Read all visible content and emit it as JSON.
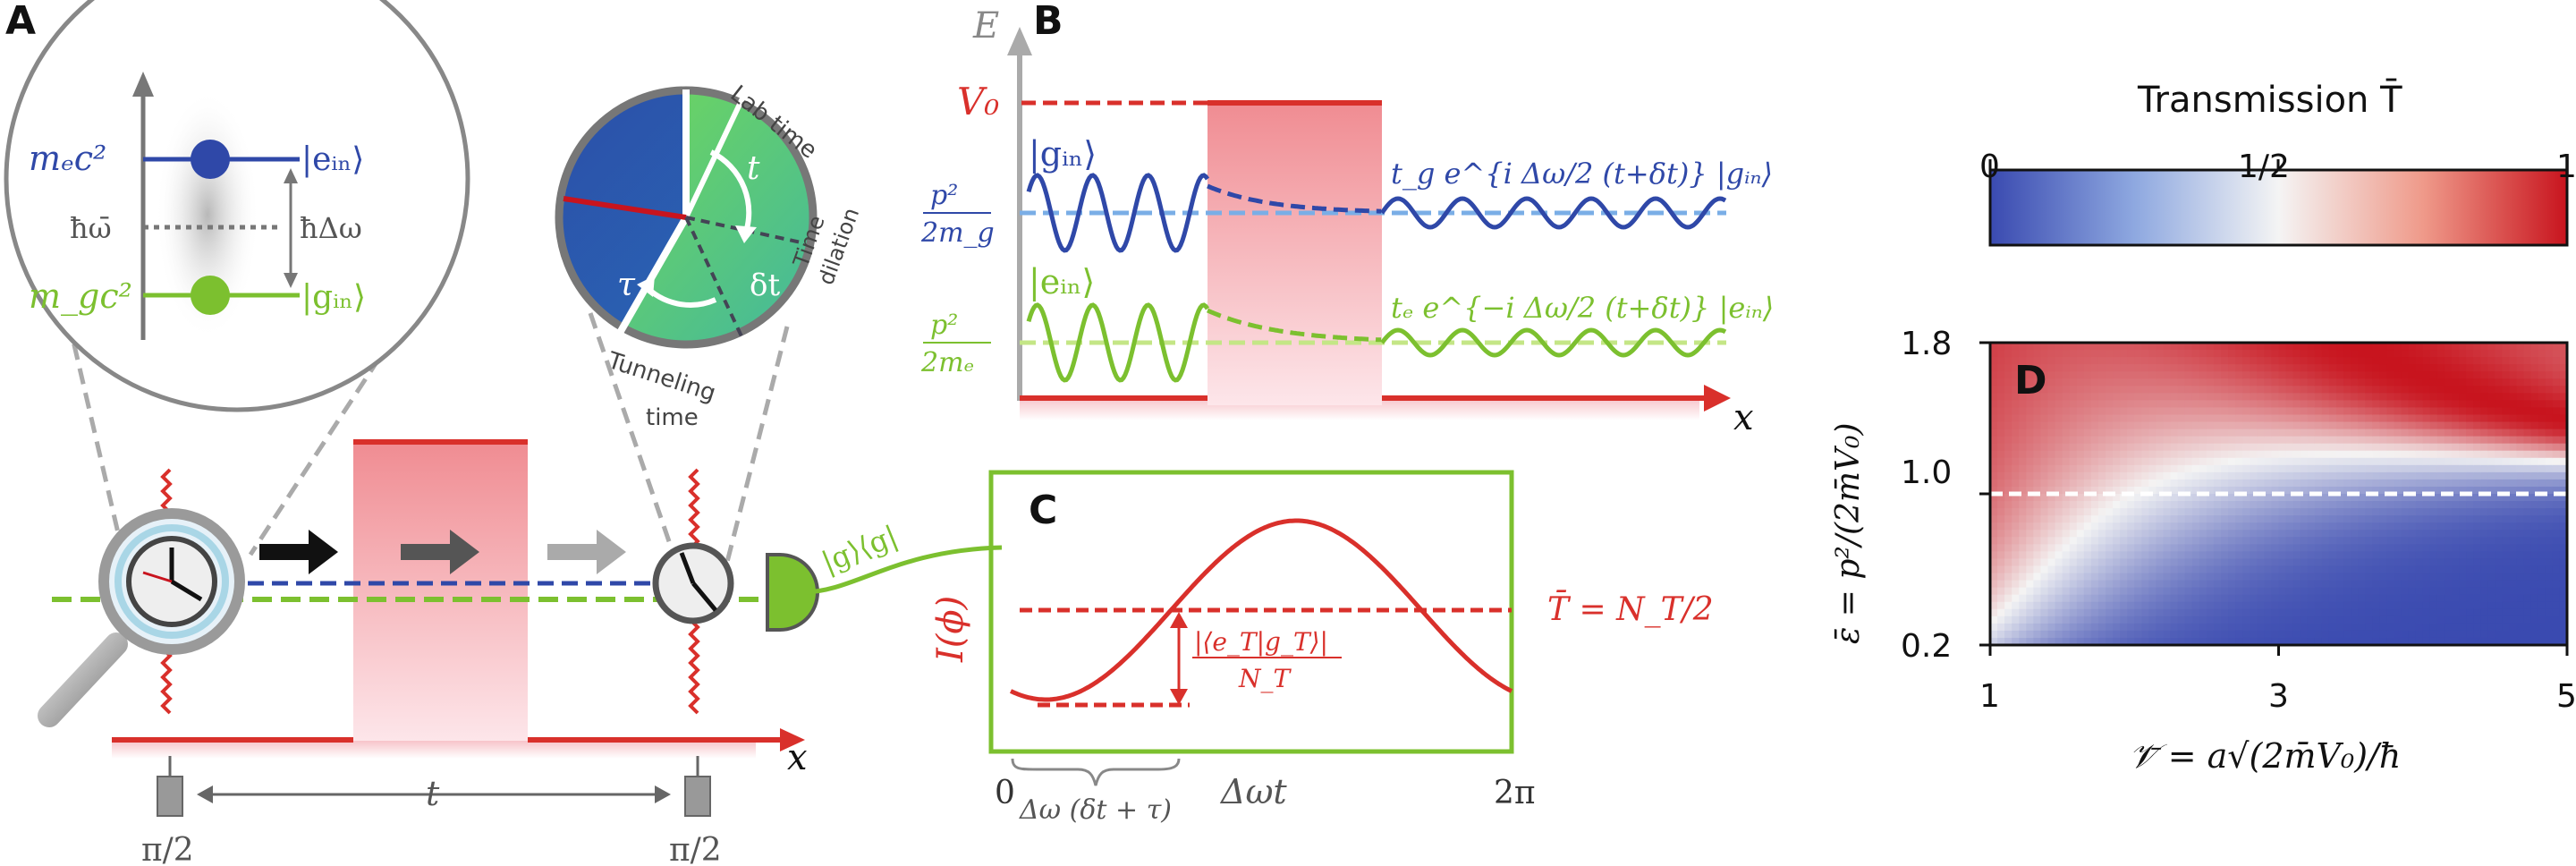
{
  "panels": {
    "a": {
      "label": "A",
      "levels": {
        "me_c2": "mₑc²",
        "mg_c2": "m_gc²",
        "e_in": "|eᵢₙ⟩",
        "g_in": "|gᵢₙ⟩",
        "hbar_omega_bar": "ħω̄",
        "hbar_delta_omega": "ħΔω"
      },
      "clock": {
        "lab_time": "Lab time",
        "time_dilation_1": "Time",
        "time_dilation_2": "dilation",
        "tunneling_time_1": "Tunneling",
        "tunneling_time_2": "time",
        "t": "t",
        "delta_t": "δt",
        "tau": "τ"
      },
      "projector": "|g⟩⟨g|",
      "pulse_left": "π/2",
      "pulse_right": "π/2",
      "duration": "t",
      "axis_x": "x"
    },
    "b": {
      "label": "B",
      "axis_e": "E",
      "axis_x": "x",
      "v0": "V₀",
      "g_in": "|gᵢₙ⟩",
      "e_in": "|eᵢₙ⟩",
      "kinetic_g_num": "p²",
      "kinetic_g_den": "2m_g",
      "kinetic_e_num": "p²",
      "kinetic_e_den": "2mₑ",
      "out_g": "t_g e^{i Δω/2 (t+δt)} |gᵢₙ⟩",
      "out_e": "tₑ e^{−i Δω/2 (t+δt)} |eᵢₙ⟩"
    },
    "c": {
      "label": "C",
      "ylabel": "I(ϕ)",
      "tbar_eq": "T̄ = N_T/2",
      "amp_num": "|⟨e_T|g_T⟩|",
      "amp_den": "N_T",
      "x_start": "0",
      "x_end": "2π",
      "x_label": "Δωt",
      "offset_label": "Δω (δt + τ)"
    },
    "d": {
      "label": "D",
      "colorbar_title": "Transmission T̄",
      "colorbar_ticks": [
        "0",
        "1/2",
        "1"
      ],
      "ylabel": "ε̄ = p²/(2m̄V₀)",
      "xlabel": "𝒱̄ = a√(2m̄V₀)/ħ",
      "y_ticks": [
        "1.8",
        "1.0",
        "0.2"
      ],
      "x_ticks": [
        "1",
        "3",
        "5"
      ]
    }
  },
  "chart_data": {
    "type": "heatmap",
    "title": "",
    "colorbar_label": "Transmission T̄",
    "colorbar_range": [
      0,
      1
    ],
    "colorbar_ticks": [
      "0",
      "1/2",
      "1"
    ],
    "colormap": [
      "#3a4ab0",
      "#ffffff",
      "#c8141e"
    ],
    "x_range": [
      1,
      5
    ],
    "y_range": [
      0.2,
      1.8
    ],
    "x_ticks": [
      1,
      3,
      5
    ],
    "y_ticks": [
      0.2,
      1.0,
      1.8
    ],
    "reference_line_y": 1.0,
    "xlabel": "𝒱̄ = a√(2m̄V₀)/ħ",
    "ylabel": "ε̄ = p²/(2m̄V₀)"
  },
  "colors": {
    "red": "#d9302b",
    "blue": "#2f48a8",
    "lightblue": "#7aaee6",
    "green": "#7cc02f",
    "lightgreen": "#c4e686",
    "gray": "#888888",
    "barrier_top": "#f08c92",
    "barrier_bottom": "#fde4e8"
  }
}
